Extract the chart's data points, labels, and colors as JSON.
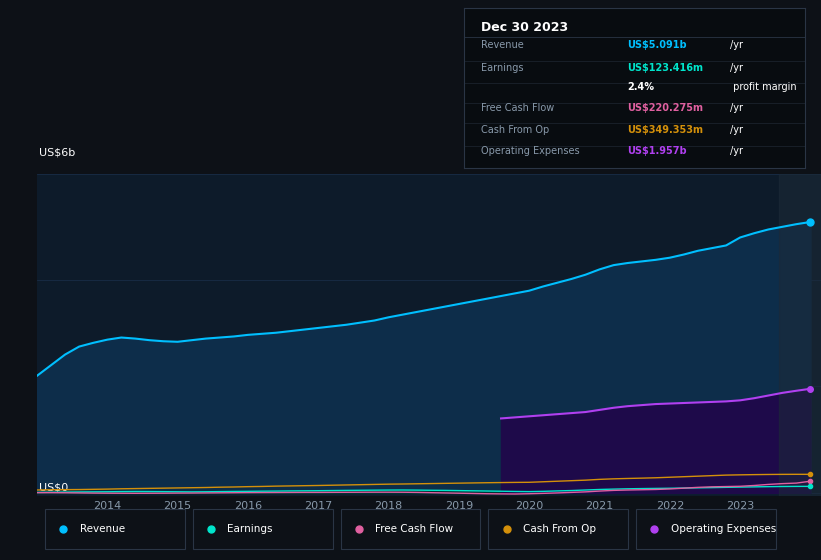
{
  "background_color": "#0d1117",
  "chart_bg_color": "#0d1b2a",
  "title": "Dec 30 2023",
  "ylabel": "US$6b",
  "ylabel_bottom": "US$0",
  "years": [
    2013.0,
    2013.2,
    2013.4,
    2013.6,
    2013.8,
    2014.0,
    2014.2,
    2014.4,
    2014.6,
    2014.8,
    2015.0,
    2015.2,
    2015.4,
    2015.6,
    2015.8,
    2016.0,
    2016.2,
    2016.4,
    2016.6,
    2016.8,
    2017.0,
    2017.2,
    2017.4,
    2017.6,
    2017.8,
    2018.0,
    2018.2,
    2018.4,
    2018.6,
    2018.8,
    2019.0,
    2019.2,
    2019.4,
    2019.6,
    2019.8,
    2020.0,
    2020.2,
    2020.4,
    2020.6,
    2020.8,
    2021.0,
    2021.2,
    2021.4,
    2021.6,
    2021.8,
    2022.0,
    2022.2,
    2022.4,
    2022.6,
    2022.8,
    2023.0,
    2023.2,
    2023.4,
    2023.6,
    2023.8,
    2024.0
  ],
  "revenue": [
    2.2,
    2.4,
    2.6,
    2.75,
    2.82,
    2.88,
    2.92,
    2.9,
    2.87,
    2.85,
    2.84,
    2.87,
    2.9,
    2.92,
    2.94,
    2.97,
    2.99,
    3.01,
    3.04,
    3.07,
    3.1,
    3.13,
    3.16,
    3.2,
    3.24,
    3.3,
    3.35,
    3.4,
    3.45,
    3.5,
    3.55,
    3.6,
    3.65,
    3.7,
    3.75,
    3.8,
    3.88,
    3.95,
    4.02,
    4.1,
    4.2,
    4.28,
    4.32,
    4.35,
    4.38,
    4.42,
    4.48,
    4.55,
    4.6,
    4.65,
    4.8,
    4.88,
    4.95,
    5.0,
    5.05,
    5.091
  ],
  "earnings": [
    0.01,
    0.012,
    0.015,
    0.018,
    0.02,
    0.022,
    0.025,
    0.027,
    0.026,
    0.024,
    0.022,
    0.02,
    0.022,
    0.025,
    0.028,
    0.03,
    0.033,
    0.035,
    0.038,
    0.04,
    0.042,
    0.045,
    0.048,
    0.05,
    0.052,
    0.054,
    0.055,
    0.053,
    0.05,
    0.048,
    0.044,
    0.04,
    0.036,
    0.032,
    0.028,
    0.025,
    0.03,
    0.038,
    0.045,
    0.055,
    0.065,
    0.072,
    0.078,
    0.082,
    0.085,
    0.088,
    0.092,
    0.096,
    0.1,
    0.105,
    0.11,
    0.114,
    0.118,
    0.121,
    0.123,
    0.1234
  ],
  "free_cash_flow": [
    0.005,
    0.005,
    0.003,
    0.0,
    -0.003,
    -0.005,
    -0.006,
    -0.007,
    -0.006,
    -0.005,
    -0.003,
    -0.002,
    0.0,
    0.002,
    0.004,
    0.006,
    0.007,
    0.008,
    0.009,
    0.01,
    0.01,
    0.011,
    0.012,
    0.013,
    0.014,
    0.014,
    0.013,
    0.01,
    0.005,
    0.0,
    -0.005,
    -0.01,
    -0.015,
    -0.018,
    -0.02,
    -0.015,
    -0.008,
    0.0,
    0.01,
    0.02,
    0.035,
    0.048,
    0.055,
    0.06,
    0.065,
    0.075,
    0.09,
    0.105,
    0.115,
    0.12,
    0.125,
    0.14,
    0.16,
    0.175,
    0.185,
    0.2203
  ],
  "cash_from_op": [
    0.055,
    0.06,
    0.062,
    0.064,
    0.068,
    0.072,
    0.078,
    0.082,
    0.086,
    0.09,
    0.094,
    0.098,
    0.102,
    0.108,
    0.112,
    0.118,
    0.122,
    0.128,
    0.132,
    0.136,
    0.14,
    0.145,
    0.15,
    0.155,
    0.16,
    0.165,
    0.168,
    0.172,
    0.176,
    0.18,
    0.184,
    0.188,
    0.192,
    0.195,
    0.198,
    0.2,
    0.21,
    0.22,
    0.23,
    0.24,
    0.255,
    0.265,
    0.272,
    0.278,
    0.285,
    0.295,
    0.305,
    0.315,
    0.325,
    0.335,
    0.34,
    0.344,
    0.347,
    0.349,
    0.35,
    0.3494
  ],
  "op_exp_years": [
    2019.6,
    2019.8,
    2020.0,
    2020.2,
    2020.4,
    2020.6,
    2020.8,
    2021.0,
    2021.2,
    2021.4,
    2021.6,
    2021.8,
    2022.0,
    2022.2,
    2022.4,
    2022.6,
    2022.8,
    2023.0,
    2023.2,
    2023.4,
    2023.6,
    2023.8,
    2024.0
  ],
  "op_exp_vals": [
    1.4,
    1.42,
    1.44,
    1.46,
    1.48,
    1.5,
    1.52,
    1.56,
    1.6,
    1.63,
    1.65,
    1.67,
    1.68,
    1.69,
    1.7,
    1.71,
    1.72,
    1.74,
    1.78,
    1.83,
    1.88,
    1.92,
    1.957
  ],
  "revenue_color": "#00bfff",
  "revenue_fill": "#0d2d4a",
  "earnings_color": "#00e5cc",
  "earnings_fill": "#003333",
  "free_cash_flow_color": "#e060a0",
  "cash_from_op_color": "#d4900a",
  "operating_expenses_color": "#b040f0",
  "operating_expenses_fill": "#1e0a4a",
  "grid_color": "#1e3555",
  "text_color": "#8899aa",
  "table_bg": "#080c10",
  "table_border": "#2a3545",
  "xmin": 2013.0,
  "xmax": 2024.15,
  "ymin": -0.05,
  "ymax": 6.0,
  "xticks": [
    2014,
    2015,
    2016,
    2017,
    2018,
    2019,
    2020,
    2021,
    2022,
    2023
  ],
  "legend_items": [
    "Revenue",
    "Earnings",
    "Free Cash Flow",
    "Cash From Op",
    "Operating Expenses"
  ],
  "legend_colors": [
    "#00bfff",
    "#00e5cc",
    "#e060a0",
    "#d4900a",
    "#b040f0"
  ]
}
